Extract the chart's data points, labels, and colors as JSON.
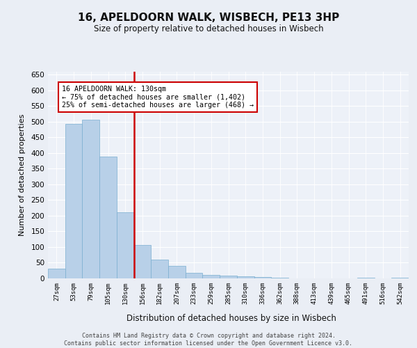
{
  "title": "16, APELDOORN WALK, WISBECH, PE13 3HP",
  "subtitle": "Size of property relative to detached houses in Wisbech",
  "xlabel": "Distribution of detached houses by size in Wisbech",
  "ylabel": "Number of detached properties",
  "bar_color": "#b8d0e8",
  "bar_edge_color": "#7aaed0",
  "categories": [
    "27sqm",
    "53sqm",
    "79sqm",
    "105sqm",
    "130sqm",
    "156sqm",
    "182sqm",
    "207sqm",
    "233sqm",
    "259sqm",
    "285sqm",
    "310sqm",
    "336sqm",
    "362sqm",
    "388sqm",
    "413sqm",
    "439sqm",
    "465sqm",
    "491sqm",
    "516sqm",
    "542sqm"
  ],
  "values": [
    30,
    492,
    505,
    388,
    210,
    107,
    59,
    40,
    18,
    12,
    9,
    6,
    5,
    2,
    1,
    1,
    0,
    0,
    2,
    0,
    2
  ],
  "vline_index": 4,
  "vline_color": "#cc0000",
  "annotation_line1": "16 APELDOORN WALK: 130sqm",
  "annotation_line2": "← 75% of detached houses are smaller (1,402)",
  "annotation_line3": "25% of semi-detached houses are larger (468) →",
  "annotation_box_color": "#cc0000",
  "ylim": [
    0,
    660
  ],
  "yticks": [
    0,
    50,
    100,
    150,
    200,
    250,
    300,
    350,
    400,
    450,
    500,
    550,
    600,
    650
  ],
  "footer": "Contains HM Land Registry data © Crown copyright and database right 2024.\nContains public sector information licensed under the Open Government Licence v3.0.",
  "bg_color": "#eaeef5",
  "plot_bg_color": "#edf1f8"
}
